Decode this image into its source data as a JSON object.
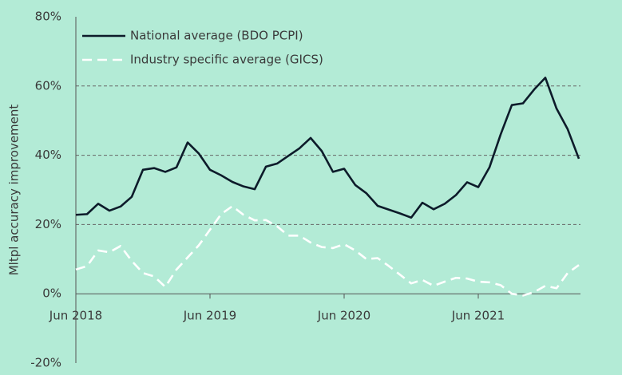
{
  "chart_data": {
    "type": "line",
    "y_axis_label": "Mltpl accuracy improvement",
    "categories": [
      "Jun 2018",
      null,
      null,
      null,
      null,
      null,
      null,
      null,
      null,
      null,
      null,
      null,
      "Jun 2019",
      null,
      null,
      null,
      null,
      null,
      null,
      null,
      null,
      null,
      null,
      null,
      "Jun 2020",
      null,
      null,
      null,
      null,
      null,
      null,
      null,
      null,
      null,
      null,
      null,
      "Jun 2021",
      null,
      null,
      null,
      null,
      null,
      null,
      null,
      null,
      null
    ],
    "series": [
      {
        "name": "National average (BDO PCPI)",
        "color": "#0d1b2a",
        "dash": false,
        "values": [
          22.8,
          23,
          26,
          24,
          25.2,
          28,
          35.8,
          36.3,
          35.2,
          36.5,
          43.7,
          40.5,
          35.8,
          34.2,
          32.3,
          31,
          30.2,
          36.7,
          37.6,
          39.8,
          42,
          45,
          41.2,
          35.2,
          36.1,
          31.4,
          29,
          25.4,
          24.3,
          23.2,
          22,
          26.3,
          24.4,
          26,
          28.5,
          32.2,
          30.8,
          36.5,
          46,
          54.5,
          55,
          59,
          62.4,
          53.5,
          47.5,
          39
        ]
      },
      {
        "name": "Industry specific average (GICS)",
        "color": "#ffffff",
        "dash": true,
        "values": [
          7,
          8,
          12.5,
          12,
          13.8,
          9.5,
          6,
          5,
          2,
          7,
          10.5,
          14,
          18.5,
          23,
          25.3,
          22.8,
          21.2,
          21.3,
          19.5,
          16.8,
          16.8,
          14.8,
          13.5,
          13.2,
          14.3,
          12.5,
          10,
          10.3,
          8,
          5.5,
          3,
          4,
          2.3,
          3.5,
          4.6,
          4.4,
          3.5,
          3.3,
          2.5,
          0,
          -0.5,
          0.5,
          2.3,
          1.6,
          6,
          8.3
        ]
      }
    ],
    "ylim": [
      -20,
      80
    ],
    "yticks": [
      {
        "value": -20,
        "label": "-20%"
      },
      {
        "value": 0,
        "label": "0%"
      },
      {
        "value": 20,
        "label": "20%"
      },
      {
        "value": 40,
        "label": "40%"
      },
      {
        "value": 60,
        "label": "60%"
      },
      {
        "value": 80,
        "label": "80%"
      }
    ],
    "grid": true,
    "legend": "top-left",
    "background": "#b3ebd6"
  }
}
